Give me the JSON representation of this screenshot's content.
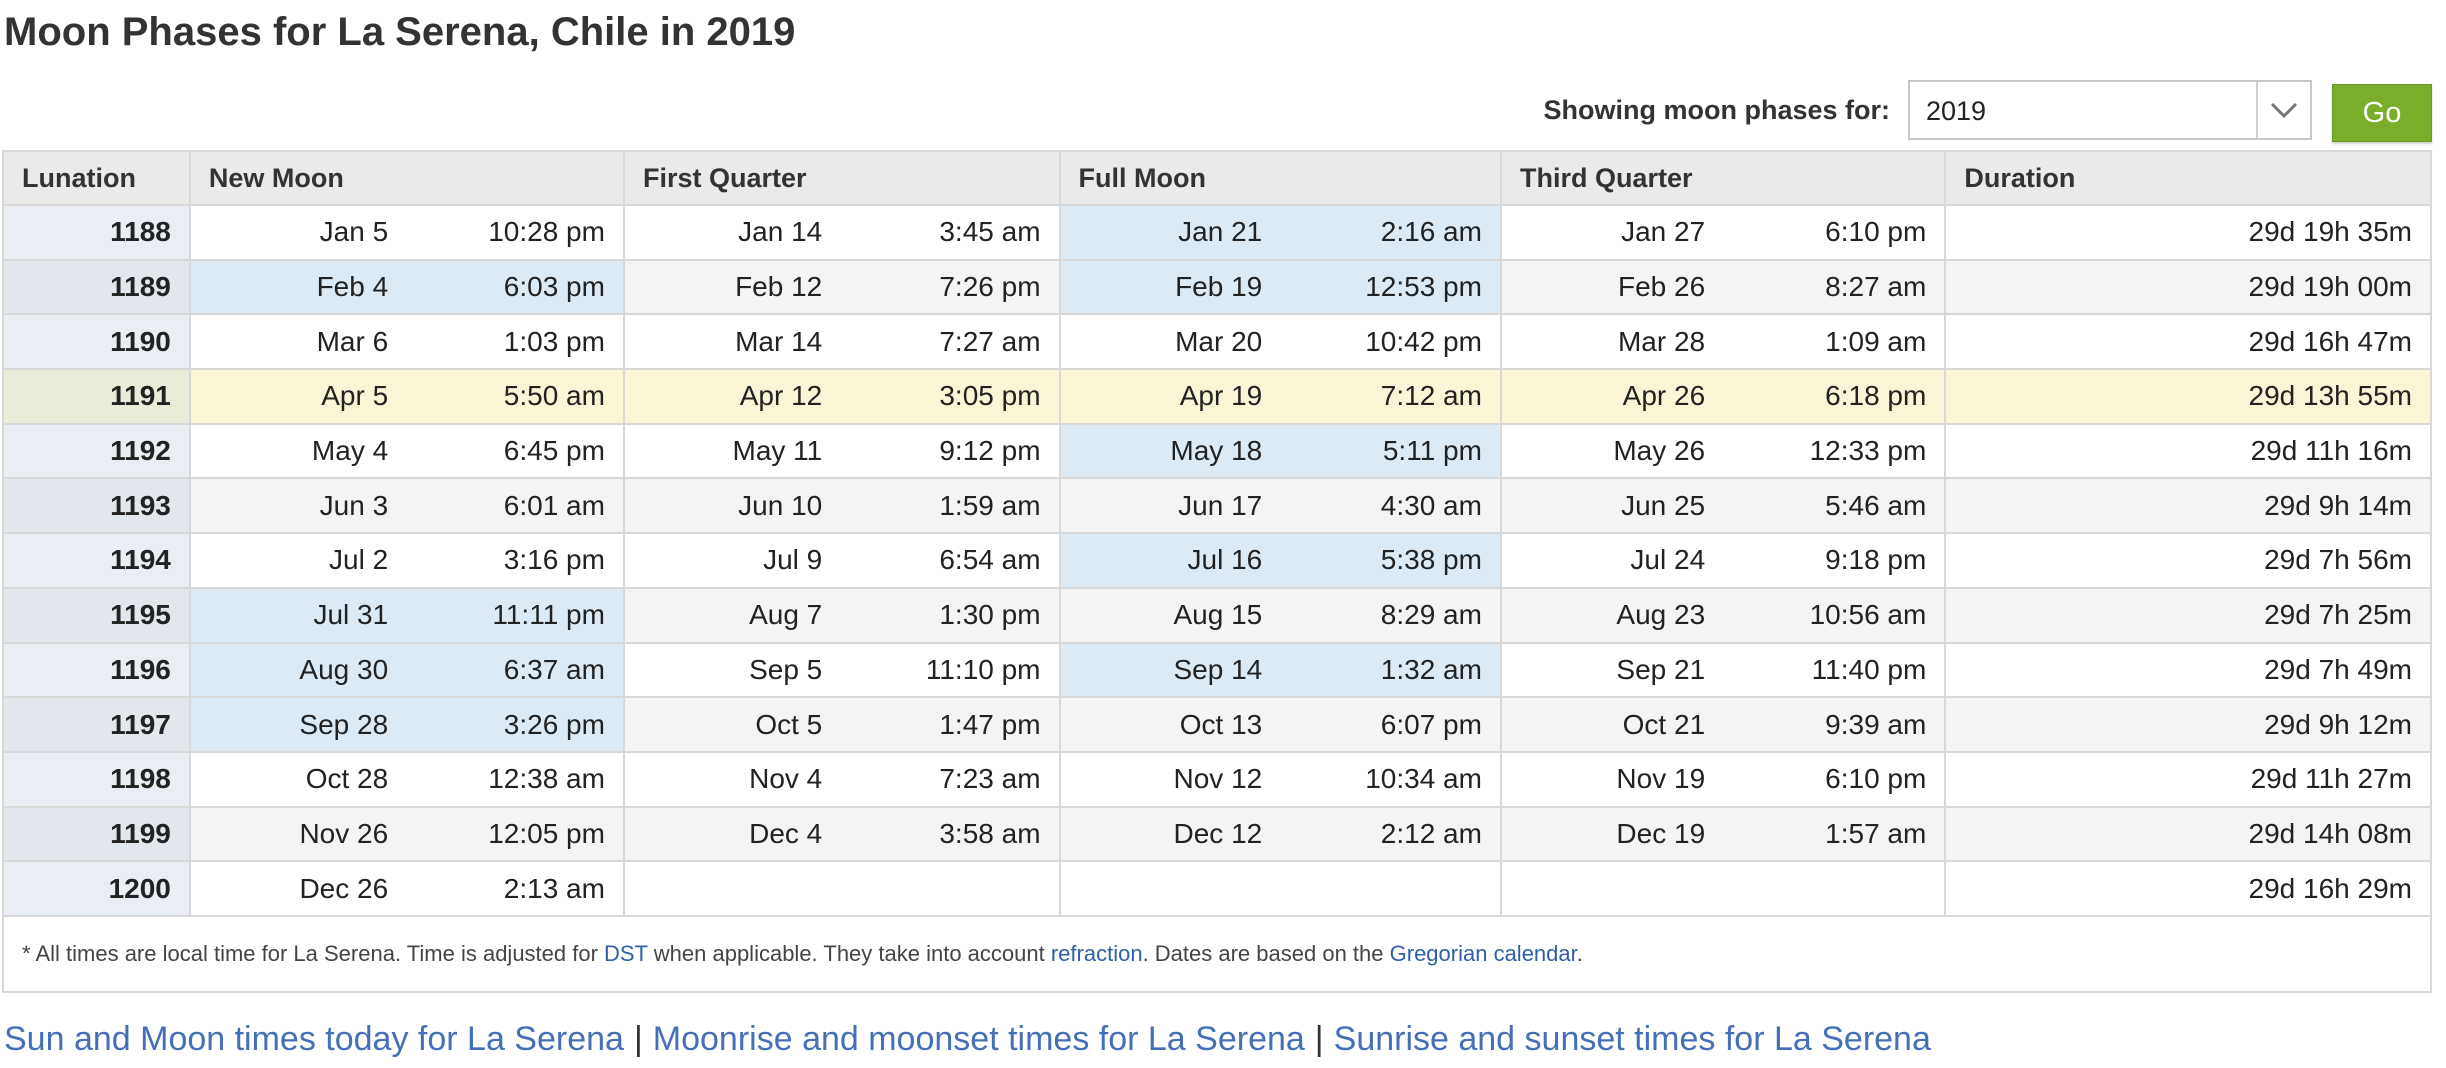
{
  "page": {
    "title": "Moon Phases for La Serena, Chile in 2019"
  },
  "selector": {
    "label": "Showing moon phases for:",
    "year": "2019",
    "go_label": "Go"
  },
  "colors": {
    "highlight": "#dbeaf5",
    "current_row": "#faf5d6",
    "go_button": "#7bad2b",
    "link": "#4570b8"
  },
  "table": {
    "headers": [
      "Lunation",
      "New Moon",
      "First Quarter",
      "Full Moon",
      "Third Quarter",
      "Duration"
    ],
    "rows": [
      {
        "lunation": "1188",
        "new_date": "Jan 5",
        "new_time": "10:28 pm",
        "fq_date": "Jan 14",
        "fq_time": "3:45 am",
        "full_date": "Jan 21",
        "full_time": "2:16 am",
        "tq_date": "Jan 27",
        "tq_time": "6:10 pm",
        "duration": "29d 19h 35m",
        "highlight": [
          "full"
        ]
      },
      {
        "lunation": "1189",
        "new_date": "Feb 4",
        "new_time": "6:03 pm",
        "fq_date": "Feb 12",
        "fq_time": "7:26 pm",
        "full_date": "Feb 19",
        "full_time": "12:53 pm",
        "tq_date": "Feb 26",
        "tq_time": "8:27 am",
        "duration": "29d 19h 00m",
        "highlight": [
          "new",
          "full"
        ]
      },
      {
        "lunation": "1190",
        "new_date": "Mar 6",
        "new_time": "1:03 pm",
        "fq_date": "Mar 14",
        "fq_time": "7:27 am",
        "full_date": "Mar 20",
        "full_time": "10:42 pm",
        "tq_date": "Mar 28",
        "tq_time": "1:09 am",
        "duration": "29d 16h 47m",
        "highlight": []
      },
      {
        "lunation": "1191",
        "new_date": "Apr 5",
        "new_time": "5:50 am",
        "fq_date": "Apr 12",
        "fq_time": "3:05 pm",
        "full_date": "Apr 19",
        "full_time": "7:12 am",
        "tq_date": "Apr 26",
        "tq_time": "6:18 pm",
        "duration": "29d 13h 55m",
        "highlight": [],
        "current": true
      },
      {
        "lunation": "1192",
        "new_date": "May 4",
        "new_time": "6:45 pm",
        "fq_date": "May 11",
        "fq_time": "9:12 pm",
        "full_date": "May 18",
        "full_time": "5:11 pm",
        "tq_date": "May 26",
        "tq_time": "12:33 pm",
        "duration": "29d 11h 16m",
        "highlight": [
          "full"
        ]
      },
      {
        "lunation": "1193",
        "new_date": "Jun 3",
        "new_time": "6:01 am",
        "fq_date": "Jun 10",
        "fq_time": "1:59 am",
        "full_date": "Jun 17",
        "full_time": "4:30 am",
        "tq_date": "Jun 25",
        "tq_time": "5:46 am",
        "duration": "29d 9h 14m",
        "highlight": []
      },
      {
        "lunation": "1194",
        "new_date": "Jul 2",
        "new_time": "3:16 pm",
        "fq_date": "Jul 9",
        "fq_time": "6:54 am",
        "full_date": "Jul 16",
        "full_time": "5:38 pm",
        "tq_date": "Jul 24",
        "tq_time": "9:18 pm",
        "duration": "29d 7h 56m",
        "highlight": [
          "full"
        ]
      },
      {
        "lunation": "1195",
        "new_date": "Jul 31",
        "new_time": "11:11 pm",
        "fq_date": "Aug 7",
        "fq_time": "1:30 pm",
        "full_date": "Aug 15",
        "full_time": "8:29 am",
        "tq_date": "Aug 23",
        "tq_time": "10:56 am",
        "duration": "29d 7h 25m",
        "highlight": [
          "new"
        ]
      },
      {
        "lunation": "1196",
        "new_date": "Aug 30",
        "new_time": "6:37 am",
        "fq_date": "Sep 5",
        "fq_time": "11:10 pm",
        "full_date": "Sep 14",
        "full_time": "1:32 am",
        "tq_date": "Sep 21",
        "tq_time": "11:40 pm",
        "duration": "29d 7h 49m",
        "highlight": [
          "new",
          "full"
        ]
      },
      {
        "lunation": "1197",
        "new_date": "Sep 28",
        "new_time": "3:26 pm",
        "fq_date": "Oct 5",
        "fq_time": "1:47 pm",
        "full_date": "Oct 13",
        "full_time": "6:07 pm",
        "tq_date": "Oct 21",
        "tq_time": "9:39 am",
        "duration": "29d 9h 12m",
        "highlight": [
          "new"
        ]
      },
      {
        "lunation": "1198",
        "new_date": "Oct 28",
        "new_time": "12:38 am",
        "fq_date": "Nov 4",
        "fq_time": "7:23 am",
        "full_date": "Nov 12",
        "full_time": "10:34 am",
        "tq_date": "Nov 19",
        "tq_time": "6:10 pm",
        "duration": "29d 11h 27m",
        "highlight": []
      },
      {
        "lunation": "1199",
        "new_date": "Nov 26",
        "new_time": "12:05 pm",
        "fq_date": "Dec 4",
        "fq_time": "3:58 am",
        "full_date": "Dec 12",
        "full_time": "2:12 am",
        "tq_date": "Dec 19",
        "tq_time": "1:57 am",
        "duration": "29d 14h 08m",
        "highlight": []
      },
      {
        "lunation": "1200",
        "new_date": "Dec 26",
        "new_time": "2:13 am",
        "fq_date": "",
        "fq_time": "",
        "full_date": "",
        "full_time": "",
        "tq_date": "",
        "tq_time": "",
        "duration": "29d 16h 29m",
        "highlight": []
      }
    ]
  },
  "footnote": {
    "prefix": "* All times are local time for La Serena. Time is adjusted for ",
    "link1": "DST",
    "mid1": " when applicable. They take into account ",
    "link2": "refraction",
    "mid2": ". Dates are based on the ",
    "link3": "Gregorian calendar",
    "suffix": "."
  },
  "bottom_links": {
    "link1": "Sun and Moon times today for La Serena",
    "link2": "Moonrise and moonset times for La Serena",
    "link3": "Sunrise and sunset times for La Serena",
    "separator": "|"
  }
}
